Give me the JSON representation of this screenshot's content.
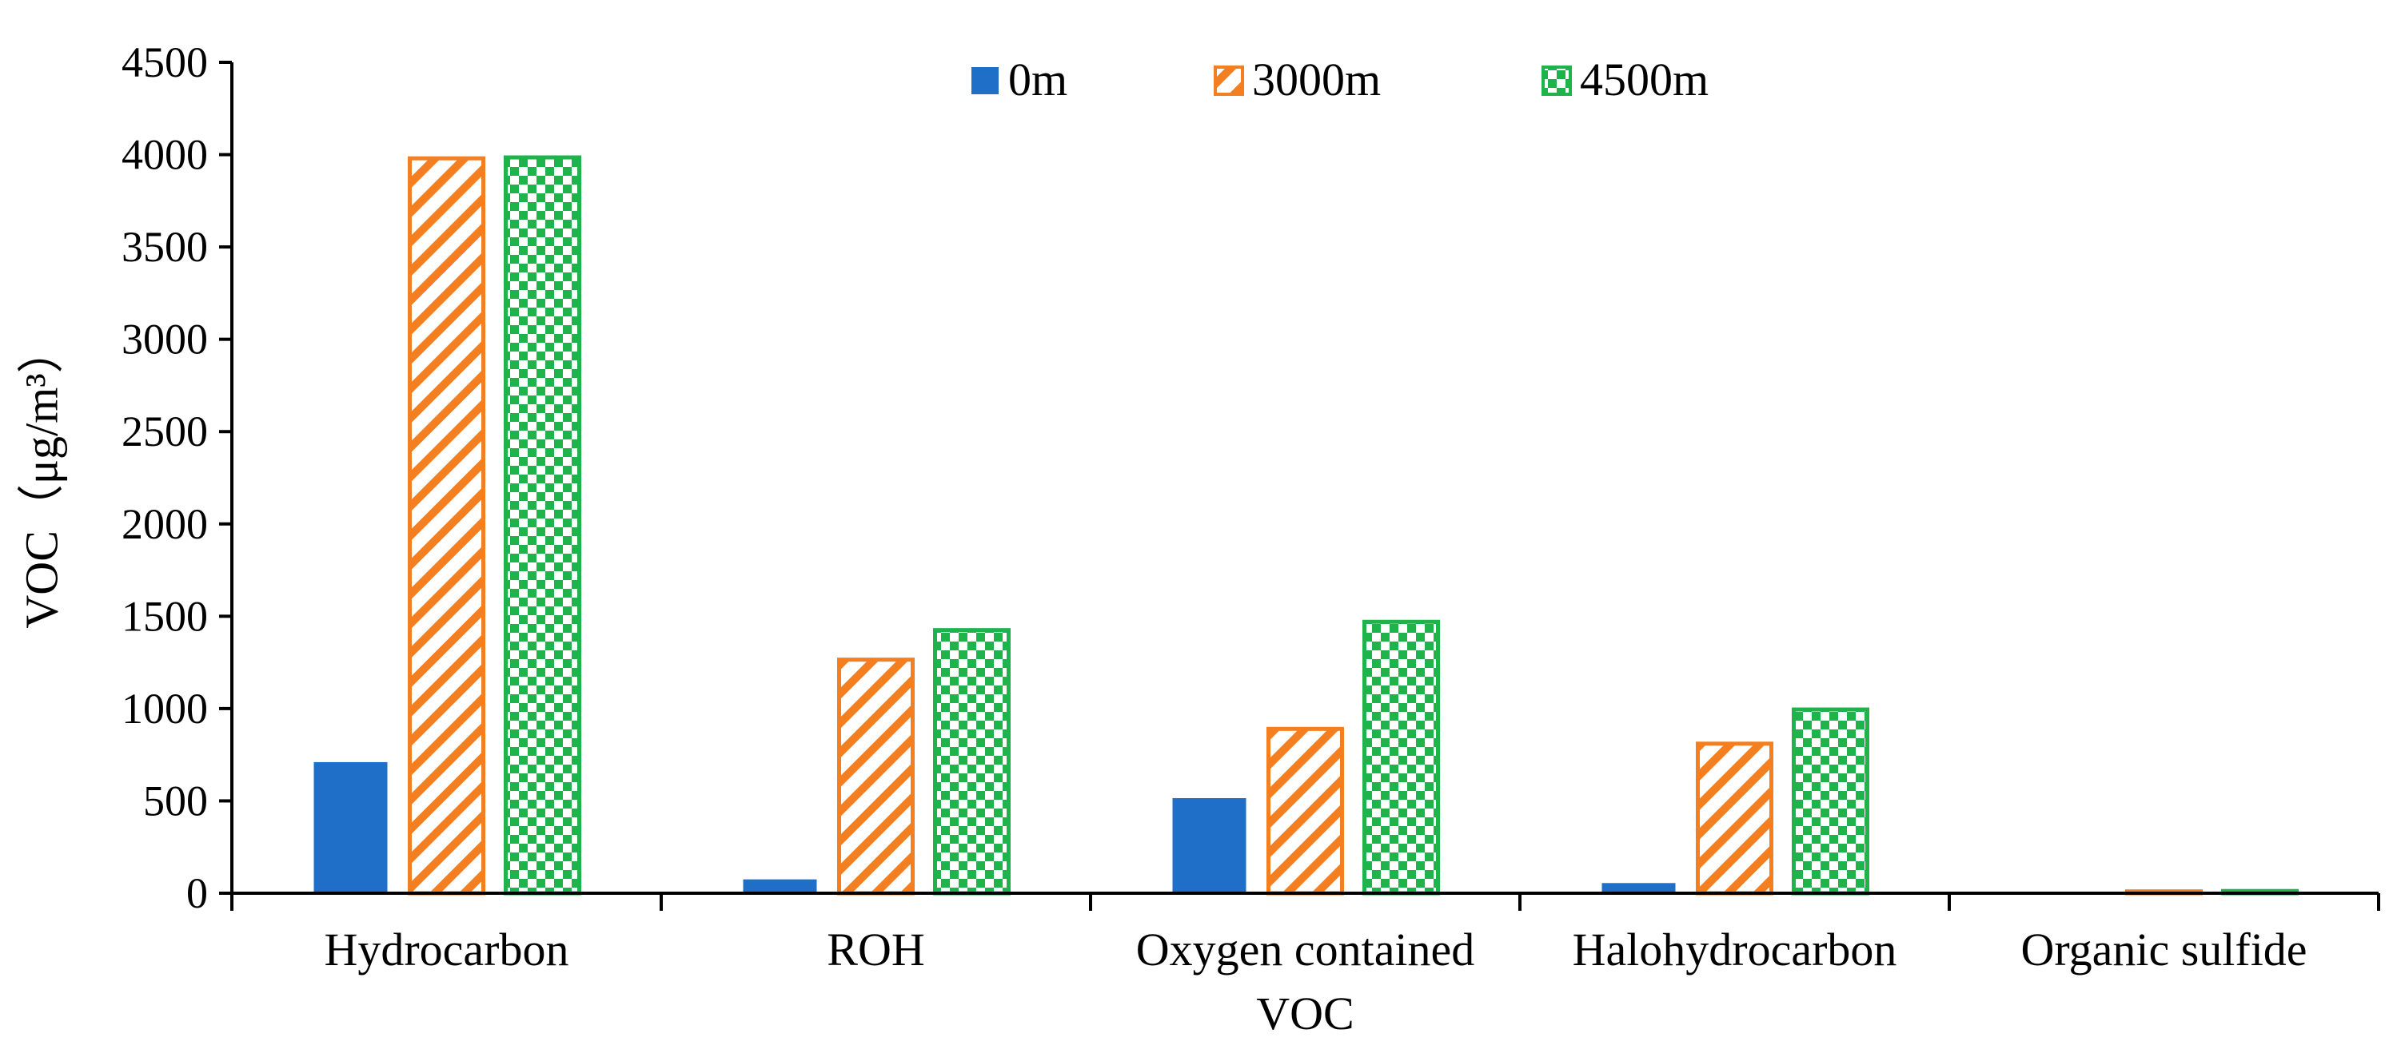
{
  "chart_data": {
    "type": "bar",
    "title": "",
    "xlabel": "",
    "ylabel": "VOC（μg/m³）",
    "ylim": [
      0,
      4500
    ],
    "yticks": [
      0,
      500,
      1000,
      1500,
      2000,
      2500,
      3000,
      3500,
      4000,
      4500
    ],
    "categories": [
      [
        "Hydrocarbon"
      ],
      [
        "ROH"
      ],
      [
        "Oxygen contained",
        "VOC"
      ],
      [
        "Halohydrocarbon"
      ],
      [
        "Organic sulfide"
      ]
    ],
    "series": [
      {
        "name": "0m",
        "values": [
          710,
          75,
          515,
          55,
          0
        ]
      },
      {
        "name": "3000m",
        "values": [
          3980,
          1265,
          890,
          810,
          10
        ]
      },
      {
        "name": "4500m",
        "values": [
          3985,
          1425,
          1470,
          995,
          12
        ]
      }
    ],
    "legend_position": "top-center",
    "grid": false
  },
  "colors": {
    "0m": "#1f6fc8",
    "3000m": "#f47f20",
    "4500m": "#1fb34b",
    "axis": "#000000"
  }
}
